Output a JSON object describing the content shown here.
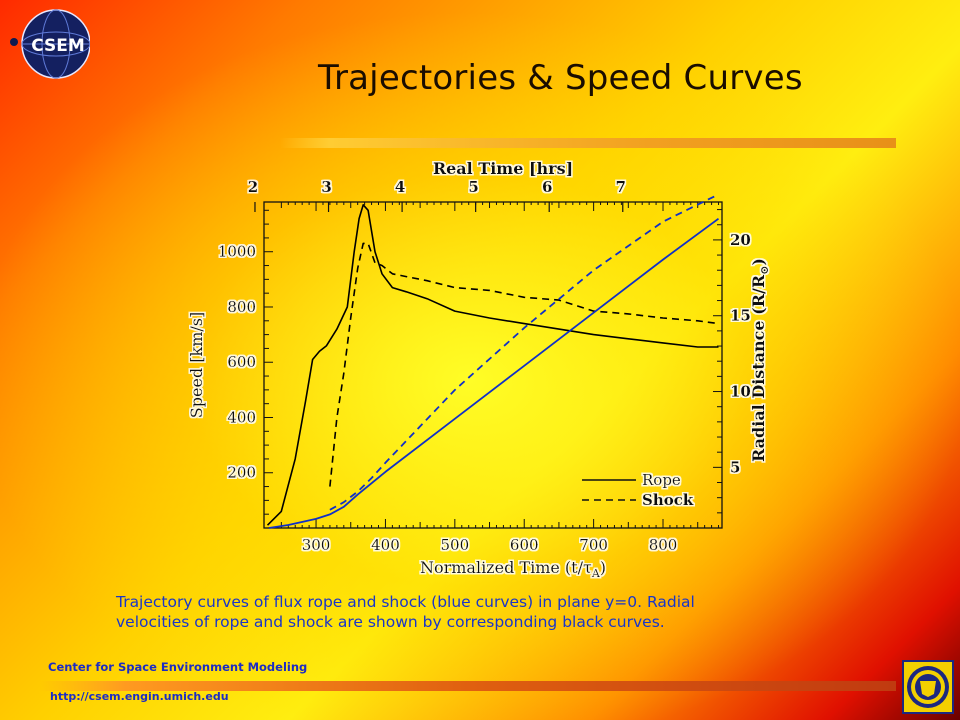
{
  "header": {
    "logo_text": "CSEM",
    "title": "Trajectories & Speed Curves"
  },
  "chart_data": {
    "type": "line",
    "top_axis_label": "Real Time [hrs]",
    "top_ticks": [
      2,
      3,
      4,
      5,
      6,
      7
    ],
    "xlabel": "Normalized Time (t/τ",
    "xlabel_sub": "A",
    "xlabel_close": ")",
    "xticks": [
      300,
      400,
      500,
      600,
      700,
      800
    ],
    "xlim": [
      225,
      885
    ],
    "ylabel_left": "Speed [km/s]",
    "yticks_left": [
      200,
      400,
      600,
      800,
      1000
    ],
    "ylim_left": [
      0,
      1180
    ],
    "ylabel_right_prefix": "Radial Distance (R/R",
    "ylabel_right_sub": "⊙",
    "ylabel_right_close": ")",
    "yticks_right": [
      5,
      10,
      15,
      20
    ],
    "ylim_right": [
      1,
      22.5
    ],
    "legend": {
      "position": "bottom-right",
      "entries": [
        {
          "name": "Rope",
          "style": "solid"
        },
        {
          "name": "Shock",
          "style": "dashed"
        }
      ]
    },
    "series": [
      {
        "name": "Rope",
        "kind": "speed",
        "axis": "left",
        "color": "#000000",
        "style": "solid",
        "x": [
          230,
          250,
          270,
          285,
          295,
          305,
          315,
          330,
          345,
          355,
          362,
          368,
          375,
          385,
          395,
          410,
          430,
          460,
          500,
          550,
          600,
          650,
          700,
          750,
          800,
          850,
          880
        ],
        "y": [
          10,
          60,
          250,
          460,
          610,
          640,
          660,
          720,
          800,
          1000,
          1120,
          1170,
          1150,
          1000,
          920,
          870,
          855,
          830,
          785,
          760,
          740,
          720,
          700,
          685,
          670,
          655,
          655
        ]
      },
      {
        "name": "Shock",
        "kind": "speed",
        "axis": "left",
        "color": "#000000",
        "style": "dashed",
        "x": [
          320,
          330,
          340,
          350,
          360,
          368,
          375,
          385,
          395,
          410,
          430,
          460,
          500,
          550,
          600,
          650,
          700,
          750,
          800,
          850,
          880
        ],
        "y": [
          150,
          400,
          560,
          760,
          940,
          1030,
          1030,
          960,
          950,
          920,
          910,
          895,
          870,
          860,
          835,
          825,
          785,
          775,
          760,
          750,
          740
        ]
      },
      {
        "name": "Rope",
        "kind": "trajectory",
        "axis": "right",
        "color": "#1030c8",
        "style": "solid",
        "x": [
          232,
          260,
          300,
          320,
          340,
          360,
          400,
          500,
          600,
          700,
          800,
          880
        ],
        "y": [
          1.0,
          1.2,
          1.6,
          1.9,
          2.4,
          3.2,
          4.7,
          8.2,
          11.7,
          15.2,
          18.7,
          21.4
        ]
      },
      {
        "name": "Shock",
        "kind": "trajectory",
        "axis": "right",
        "color": "#1030c8",
        "style": "dashed",
        "x": [
          320,
          340,
          360,
          380,
          400,
          500,
          600,
          700,
          800,
          880
        ],
        "y": [
          2.2,
          2.7,
          3.4,
          4.3,
          5.3,
          10.1,
          14.2,
          18.0,
          21.2,
          23.0
        ]
      }
    ]
  },
  "caption": {
    "line1": "Trajectory curves of flux rope and shock (blue curves) in plane y=0. Radial",
    "line2": "velocities of rope and shock are shown by corresponding black curves."
  },
  "footer": {
    "org_name": "Center for Space Environment Modeling",
    "url": "http://csem.engin.umich.edu"
  },
  "colors": {
    "text_blue": "#1a36c8",
    "curve_blue": "#1030c8",
    "title": "#1a0d00"
  }
}
